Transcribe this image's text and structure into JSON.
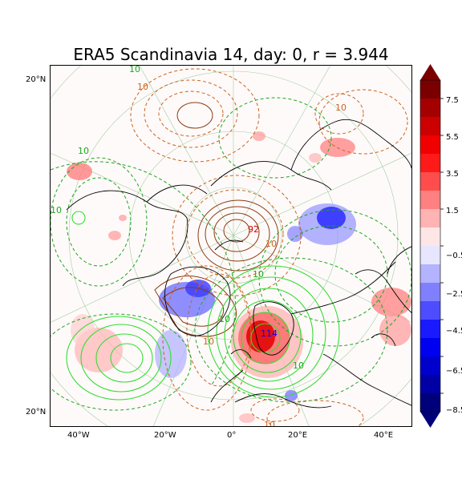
{
  "title": "ERA5 Scandinavia 14, day: 0, r = 3.944",
  "axes": {
    "lat_labels": [
      "20°N",
      "20°N"
    ],
    "lon_labels": [
      "40°W",
      "20°W",
      "0°",
      "20°E",
      "40°E"
    ]
  },
  "contour_labels": [
    "10",
    "10",
    "10",
    "10",
    "10",
    "10",
    "10",
    "10",
    "10",
    "10",
    "92",
    "114",
    "10"
  ],
  "colorbar": {
    "tick_labels": [
      "7.5",
      "5.5",
      "3.5",
      "1.5",
      "−0.5",
      "−2.5",
      "−4.5",
      "−6.5",
      "−8.5"
    ],
    "colors": [
      "#7a0000",
      "#a50000",
      "#cc0000",
      "#f00000",
      "#ff1a1a",
      "#ff4d4d",
      "#ff8080",
      "#ffb3b3",
      "#ffe6e6",
      "#e6e6ff",
      "#b3b3ff",
      "#8080ff",
      "#4d4dff",
      "#1a1aff",
      "#0000f0",
      "#0000cc",
      "#0000a5",
      "#00007a"
    ],
    "top_color": "#7a0000",
    "bottom_color": "#00007a"
  },
  "colors": {
    "positive_contour": "#1aa81a",
    "bright_contour": "#33dd33",
    "negative_contour": "#c8641e",
    "dark_contour": "#8b3a0f",
    "coast": "#000000",
    "grid": "#9ecf9e"
  }
}
